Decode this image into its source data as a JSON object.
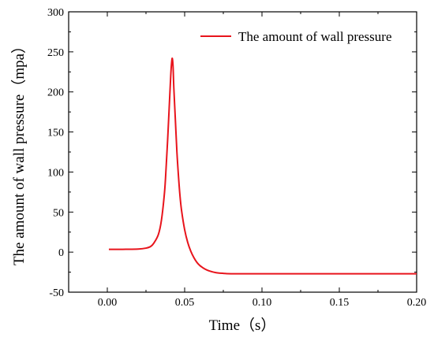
{
  "chart_data": {
    "type": "line",
    "title": "",
    "xlabel": "Time（s）",
    "ylabel": "The amount of wall pressure（mpa）",
    "xlim": [
      -0.025,
      0.2
    ],
    "ylim": [
      -50,
      300
    ],
    "xticks": [
      0.0,
      0.05,
      0.1,
      0.15,
      0.2
    ],
    "xtick_labels": [
      "0.00",
      "0.05",
      "0.10",
      "0.15",
      "0.20"
    ],
    "yticks": [
      -50,
      0,
      50,
      100,
      150,
      200,
      250,
      300
    ],
    "ytick_labels": [
      "-50",
      "0",
      "50",
      "100",
      "150",
      "200",
      "250",
      "300"
    ],
    "grid": false,
    "legend_position": "top-right",
    "series": [
      {
        "name": "The amount of wall pressure",
        "color": "#e8141c",
        "x": [
          0.001,
          0.01,
          0.02,
          0.025,
          0.028,
          0.03,
          0.033,
          0.035,
          0.037,
          0.038,
          0.039,
          0.04,
          0.041,
          0.0415,
          0.042,
          0.0425,
          0.043,
          0.044,
          0.045,
          0.046,
          0.047,
          0.048,
          0.05,
          0.052,
          0.054,
          0.056,
          0.058,
          0.06,
          0.063,
          0.066,
          0.07,
          0.075,
          0.08,
          0.1,
          0.15,
          0.2
        ],
        "y": [
          3.5,
          3.5,
          3.8,
          5,
          7,
          11,
          22,
          40,
          75,
          105,
          140,
          180,
          220,
          235,
          242,
          232,
          205,
          165,
          125,
          95,
          70,
          52,
          28,
          12,
          1,
          -7,
          -13,
          -17,
          -21,
          -23.5,
          -25.5,
          -26.5,
          -27,
          -27,
          -27,
          -27
        ]
      }
    ]
  }
}
